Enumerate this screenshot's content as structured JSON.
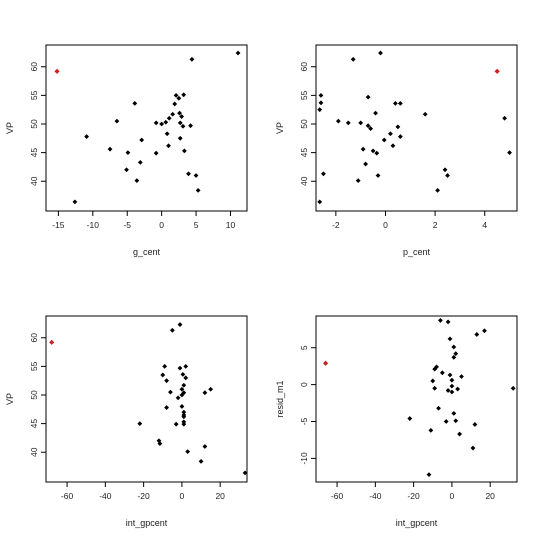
{
  "chart_data": [
    {
      "type": "scatter",
      "xlabel": "g_cent",
      "ylabel": "VP",
      "xlim": [
        -16.8,
        12.4
      ],
      "ylim": [
        34.8,
        63.8
      ],
      "xticks": [
        -15,
        -10,
        -5,
        0,
        5,
        10
      ],
      "yticks": [
        40,
        45,
        50,
        55,
        60
      ],
      "points": [
        [
          -12.6,
          36.4
        ],
        [
          -10.9,
          47.8
        ],
        [
          -7.5,
          45.6
        ],
        [
          -6.5,
          50.5
        ],
        [
          -5.1,
          42.0
        ],
        [
          -4.9,
          45.0
        ],
        [
          -3.9,
          53.6
        ],
        [
          -3.6,
          40.1
        ],
        [
          -3.1,
          43.3
        ],
        [
          -2.9,
          47.2
        ],
        [
          -0.8,
          44.9
        ],
        [
          -0.8,
          50.2
        ],
        [
          0.0,
          50.0
        ],
        [
          0.6,
          50.3
        ],
        [
          0.8,
          48.3
        ],
        [
          1.0,
          46.2
        ],
        [
          1.1,
          51.0
        ],
        [
          1.6,
          51.7
        ],
        [
          1.9,
          53.5
        ],
        [
          2.1,
          55.0
        ],
        [
          2.5,
          54.5
        ],
        [
          2.6,
          51.9
        ],
        [
          2.7,
          47.5
        ],
        [
          2.7,
          50.2
        ],
        [
          2.9,
          51.3
        ],
        [
          3.1,
          49.6
        ],
        [
          3.2,
          55.1
        ],
        [
          3.3,
          45.3
        ],
        [
          3.9,
          41.3
        ],
        [
          4.2,
          49.7
        ],
        [
          4.4,
          61.3
        ],
        [
          5.0,
          41.0
        ],
        [
          5.3,
          38.4
        ],
        [
          11.1,
          62.4
        ]
      ],
      "highlight": [
        [
          -15.2,
          59.2
        ]
      ],
      "point_color": "#000000",
      "highlight_color": "#cc2222"
    },
    {
      "type": "scatter",
      "xlabel": "p_cent",
      "ylabel": "VP",
      "xlim": [
        -2.8,
        5.3
      ],
      "ylim": [
        34.8,
        63.8
      ],
      "xticks": [
        -2,
        0,
        2,
        4
      ],
      "yticks": [
        40,
        45,
        50,
        55,
        60
      ],
      "points": [
        [
          -2.65,
          36.4
        ],
        [
          -2.65,
          52.5
        ],
        [
          -2.6,
          53.7
        ],
        [
          -2.6,
          55.0
        ],
        [
          -2.5,
          41.3
        ],
        [
          -1.9,
          50.5
        ],
        [
          -1.5,
          50.2
        ],
        [
          -1.3,
          61.3
        ],
        [
          -1.1,
          40.1
        ],
        [
          -1.0,
          50.2
        ],
        [
          -0.9,
          45.6
        ],
        [
          -0.8,
          43.0
        ],
        [
          -0.7,
          49.7
        ],
        [
          -0.7,
          54.7
        ],
        [
          -0.6,
          49.2
        ],
        [
          -0.5,
          45.3
        ],
        [
          -0.4,
          51.9
        ],
        [
          -0.35,
          44.9
        ],
        [
          -0.3,
          41.0
        ],
        [
          -0.2,
          62.4
        ],
        [
          -0.05,
          47.2
        ],
        [
          0.2,
          48.3
        ],
        [
          0.3,
          46.2
        ],
        [
          0.4,
          53.6
        ],
        [
          0.5,
          49.5
        ],
        [
          0.6,
          47.8
        ],
        [
          0.6,
          53.6
        ],
        [
          1.6,
          51.7
        ],
        [
          2.1,
          38.4
        ],
        [
          2.4,
          42.0
        ],
        [
          2.5,
          41.0
        ],
        [
          4.8,
          51.0
        ],
        [
          5.0,
          45.0
        ]
      ],
      "highlight": [
        [
          4.5,
          59.2
        ]
      ],
      "point_color": "#000000",
      "highlight_color": "#cc2222"
    },
    {
      "type": "scatter",
      "xlabel": "int_gpcent",
      "ylabel": "VP",
      "xlim": [
        -71,
        34
      ],
      "ylim": [
        34.8,
        63.8
      ],
      "xticks": [
        -60,
        -40,
        -20,
        0,
        20
      ],
      "yticks": [
        40,
        45,
        50,
        55,
        60
      ],
      "points": [
        [
          -22,
          45.0
        ],
        [
          -12,
          42.0
        ],
        [
          -11.5,
          41.5
        ],
        [
          -10,
          53.5
        ],
        [
          -9,
          55.0
        ],
        [
          -8,
          52.5
        ],
        [
          -8,
          47.8
        ],
        [
          -6,
          50.5
        ],
        [
          -5,
          61.3
        ],
        [
          -3,
          44.9
        ],
        [
          -2,
          49.5
        ],
        [
          -1,
          54.7
        ],
        [
          -1,
          62.3
        ],
        [
          0,
          50.0
        ],
        [
          0,
          48.0
        ],
        [
          0,
          51.0
        ],
        [
          0.5,
          53.6
        ],
        [
          1,
          46.2
        ],
        [
          1,
          47.0
        ],
        [
          1,
          51.7
        ],
        [
          1,
          50.4
        ],
        [
          1,
          46.5
        ],
        [
          1,
          45.3
        ],
        [
          1,
          44.9
        ],
        [
          2,
          55.0
        ],
        [
          2,
          53.0
        ],
        [
          3,
          40.1
        ],
        [
          10,
          38.4
        ],
        [
          12,
          41.0
        ],
        [
          12,
          50.4
        ],
        [
          15,
          51.0
        ],
        [
          33,
          36.4
        ]
      ],
      "highlight": [
        [
          -68,
          59.2
        ]
      ],
      "point_color": "#000000",
      "highlight_color": "#cc2222"
    },
    {
      "type": "scatter",
      "xlabel": "int_gpcent",
      "ylabel": "resid_m1",
      "xlim": [
        -71,
        34
      ],
      "ylim": [
        -13.2,
        9.3
      ],
      "xticks": [
        -60,
        -40,
        -20,
        0,
        20
      ],
      "yticks": [
        -10,
        -5,
        0,
        5
      ],
      "points": [
        [
          -22,
          -4.6
        ],
        [
          -12,
          -12.2
        ],
        [
          -11,
          -6.2
        ],
        [
          -10,
          0.5
        ],
        [
          -9,
          -0.5
        ],
        [
          -9,
          2.1
        ],
        [
          -8,
          2.4
        ],
        [
          -7,
          -3.2
        ],
        [
          -6,
          8.7
        ],
        [
          -5,
          1.6
        ],
        [
          -3,
          -5.0
        ],
        [
          -2,
          -0.8
        ],
        [
          -2,
          8.5
        ],
        [
          -1,
          1.3
        ],
        [
          -1,
          6.2
        ],
        [
          0,
          -1.0
        ],
        [
          0,
          -0.2
        ],
        [
          0,
          0.6
        ],
        [
          1,
          3.7
        ],
        [
          1,
          5.1
        ],
        [
          1,
          -3.9
        ],
        [
          2,
          -4.9
        ],
        [
          2,
          4.2
        ],
        [
          3,
          -0.6
        ],
        [
          4,
          -6.7
        ],
        [
          5,
          1.1
        ],
        [
          11,
          -8.6
        ],
        [
          12,
          -5.4
        ],
        [
          13,
          6.8
        ],
        [
          17,
          7.3
        ],
        [
          32,
          -0.5
        ]
      ],
      "highlight": [
        [
          -66,
          2.9
        ]
      ],
      "point_color": "#000000",
      "highlight_color": "#cc2222"
    }
  ]
}
